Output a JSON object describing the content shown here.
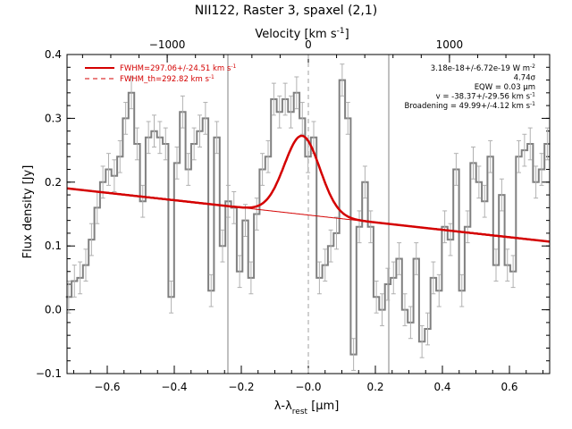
{
  "chart_data": {
    "type": "line",
    "title": "NII122, Raster 3, spaxel (2,1)",
    "xlabel": "λ-λrest [μm]",
    "ylabel": "Flux density [Jy]",
    "x2label": "Velocity [km s-1]",
    "xlim": [
      -0.72,
      0.72
    ],
    "ylim": [
      -0.1,
      0.4
    ],
    "x_ticks": [
      -0.6,
      -0.4,
      -0.2,
      0.0,
      0.2,
      0.4,
      0.6
    ],
    "x_tick_labels": [
      "−0.6",
      "−0.4",
      "−0.2",
      "−0.0",
      "0.2",
      "0.4",
      "0.6"
    ],
    "y_ticks": [
      -0.1,
      0.0,
      0.1,
      0.2,
      0.3,
      0.4
    ],
    "y_tick_labels": [
      "−0.1",
      "0.0",
      "0.1",
      "0.2",
      "0.3",
      "0.4"
    ],
    "top_ticks": [
      -1000,
      0,
      1000
    ],
    "top_tick_labels": [
      "−1000",
      "0",
      "1000"
    ],
    "grid": false,
    "legend_placement": "top-left",
    "legend": [
      {
        "label": "FWHM=297.06+/-24.51 km s",
        "sup": "-1",
        "style": "solid",
        "color": "#d40000"
      },
      {
        "label": "FWHM_th=292.82 km s",
        "sup": "-1",
        "style": "dashed",
        "color": "#d40000"
      }
    ],
    "annotations": [
      "3.18e-18+/-6.72e-19 W m",
      "4.74σ",
      "EQW = 0.03 μm",
      "v = -38.37+/-29.56 km s",
      "Broadening = 49.99+/-4.12 km s"
    ],
    "annotation_sups": [
      "-2",
      "",
      "",
      "-1",
      "-1"
    ],
    "series": [
      {
        "name": "spectrum",
        "color": "#808080",
        "style": "steps",
        "x": [
          -0.715,
          -0.698,
          -0.681,
          -0.664,
          -0.647,
          -0.63,
          -0.613,
          -0.596,
          -0.579,
          -0.562,
          -0.545,
          -0.528,
          -0.511,
          -0.494,
          -0.477,
          -0.46,
          -0.443,
          -0.426,
          -0.409,
          -0.392,
          -0.375,
          -0.358,
          -0.341,
          -0.324,
          -0.307,
          -0.29,
          -0.273,
          -0.256,
          -0.239,
          -0.222,
          -0.205,
          -0.188,
          -0.171,
          -0.154,
          -0.137,
          -0.12,
          -0.103,
          -0.086,
          -0.069,
          -0.052,
          -0.035,
          -0.018,
          -0.001,
          0.016,
          0.033,
          0.05,
          0.067,
          0.084,
          0.101,
          0.118,
          0.135,
          0.152,
          0.169,
          0.186,
          0.203,
          0.22,
          0.237,
          0.254,
          0.271,
          0.288,
          0.305,
          0.322,
          0.339,
          0.356,
          0.373,
          0.39,
          0.407,
          0.424,
          0.441,
          0.458,
          0.475,
          0.492,
          0.509,
          0.526,
          0.543,
          0.56,
          0.577,
          0.594,
          0.611,
          0.628,
          0.645,
          0.662,
          0.679,
          0.696,
          0.713
        ],
        "y": [
          0.02,
          0.045,
          0.05,
          0.07,
          0.11,
          0.16,
          0.2,
          0.22,
          0.21,
          0.24,
          0.3,
          0.34,
          0.26,
          0.17,
          0.27,
          0.28,
          0.27,
          0.26,
          0.02,
          0.23,
          0.31,
          0.22,
          0.26,
          0.28,
          0.3,
          0.03,
          0.27,
          0.1,
          0.17,
          0.16,
          0.06,
          0.14,
          0.05,
          0.15,
          0.22,
          0.24,
          0.33,
          0.31,
          0.33,
          0.31,
          0.34,
          0.3,
          0.24,
          0.27,
          0.05,
          0.07,
          0.1,
          0.12,
          0.36,
          0.3,
          -0.07,
          0.13,
          0.2,
          0.13,
          0.02,
          0.0,
          0.04,
          0.05,
          0.08,
          0.0,
          -0.02,
          0.08,
          -0.05,
          -0.03,
          0.05,
          0.03,
          0.13,
          0.11,
          0.22,
          0.03,
          0.13,
          0.23,
          0.2,
          0.17,
          0.24,
          0.07,
          0.18,
          0.07,
          0.06,
          0.24,
          0.25,
          0.26,
          0.2,
          0.22,
          0.26
        ],
        "yerr": [
          0.025,
          0.025,
          0.025,
          0.025,
          0.025,
          0.025,
          0.025,
          0.025,
          0.025,
          0.025,
          0.025,
          0.025,
          0.025,
          0.025,
          0.025,
          0.025,
          0.025,
          0.025,
          0.025,
          0.025,
          0.025,
          0.025,
          0.025,
          0.025,
          0.025,
          0.025,
          0.025,
          0.025,
          0.025,
          0.025,
          0.025,
          0.025,
          0.025,
          0.025,
          0.025,
          0.025,
          0.025,
          0.025,
          0.025,
          0.025,
          0.025,
          0.025,
          0.025,
          0.025,
          0.025,
          0.025,
          0.025,
          0.025,
          0.025,
          0.025,
          0.025,
          0.025,
          0.025,
          0.025,
          0.025,
          0.025,
          0.025,
          0.025,
          0.025,
          0.025,
          0.025,
          0.025,
          0.025,
          0.025,
          0.025,
          0.025,
          0.025,
          0.025,
          0.025,
          0.025,
          0.025,
          0.025,
          0.025,
          0.025,
          0.025,
          0.025,
          0.025,
          0.025,
          0.025,
          0.025,
          0.025,
          0.025,
          0.025,
          0.025,
          0.025
        ]
      },
      {
        "name": "FWHM=297.06+/-24.51 km s-1",
        "color": "#d40000",
        "style": "model",
        "baseline": {
          "slope": -0.058,
          "intercept": 0.1485
        },
        "gaussian": {
          "amplitude": 0.123,
          "center": -0.0185,
          "sigma": 0.053
        }
      }
    ],
    "reference_lines": [
      {
        "x": -0.24,
        "color": "#808080",
        "style": "solid"
      },
      {
        "x": 0.0,
        "color": "#a0a0a0",
        "style": "dashed"
      },
      {
        "x": 0.24,
        "color": "#808080",
        "style": "solid"
      }
    ],
    "vel_per_um": 2375
  }
}
